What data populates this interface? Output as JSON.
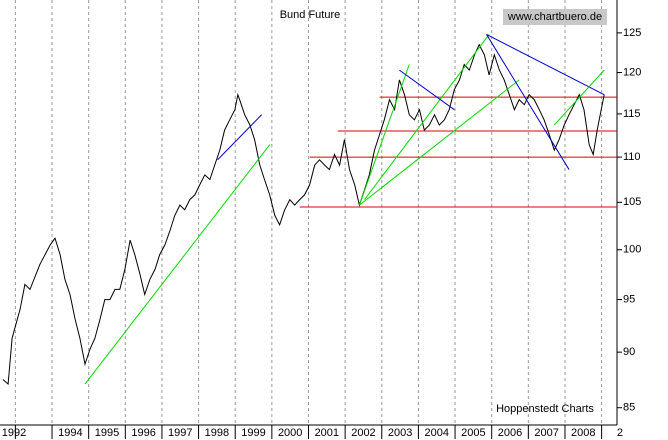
{
  "chart_data": {
    "type": "line",
    "title": "Bund Future",
    "watermark": "www.chartbuero.de",
    "source": "Hoppenstedt Charts",
    "ylog": true,
    "grid": "x",
    "xlim": [
      1992.58,
      2009.42
    ],
    "ylim": [
      83.5,
      129.3
    ],
    "yticks": [
      85,
      90,
      95,
      100,
      105,
      110,
      115,
      120,
      125
    ],
    "xticks": [
      {
        "value": 1992,
        "label": "1992"
      },
      {
        "value": 1993,
        "label": null
      },
      1994,
      1995,
      1996,
      1997,
      1998,
      1999,
      2000,
      2001,
      2002,
      2003,
      2004,
      2005,
      2006,
      2007,
      2008,
      {
        "value": 2009,
        "label": "2"
      }
    ],
    "x": [
      1992.66,
      1992.8,
      1992.91,
      1993.13,
      1993.26,
      1993.4,
      1993.67,
      1993.95,
      1994.08,
      1994.22,
      1994.35,
      1994.49,
      1994.63,
      1994.76,
      1994.9,
      1995.04,
      1995.17,
      1995.31,
      1995.44,
      1995.58,
      1995.72,
      1995.85,
      1995.99,
      1996.13,
      1996.26,
      1996.4,
      1996.53,
      1996.67,
      1996.81,
      1996.94,
      1997.08,
      1997.22,
      1997.35,
      1997.49,
      1997.62,
      1997.76,
      1997.9,
      1998.03,
      1998.17,
      1998.31,
      1998.44,
      1998.58,
      1998.71,
      1998.85,
      1998.99,
      1999.07,
      1999.12,
      1999.26,
      1999.4,
      1999.53,
      1999.67,
      1999.8,
      1999.94,
      2000.08,
      2000.21,
      2000.35,
      2000.49,
      2000.62,
      2000.76,
      2000.89,
      2001.03,
      2001.17,
      2001.3,
      2001.44,
      2001.57,
      2001.71,
      2001.85,
      2001.98,
      2002.12,
      2002.26,
      2002.39,
      2002.53,
      2002.66,
      2002.8,
      2002.94,
      2003.07,
      2003.21,
      2003.35,
      2003.48,
      2003.62,
      2003.75,
      2003.89,
      2004.03,
      2004.16,
      2004.3,
      2004.44,
      2004.57,
      2004.71,
      2004.84,
      2004.98,
      2005.12,
      2005.25,
      2005.39,
      2005.53,
      2005.66,
      2005.8,
      2005.93,
      2006.07,
      2006.21,
      2006.34,
      2006.48,
      2006.62,
      2006.75,
      2006.89,
      2007.02,
      2007.16,
      2007.3,
      2007.43,
      2007.57,
      2007.71,
      2007.84,
      2007.98,
      2008.11,
      2008.25,
      2008.39,
      2008.52,
      2008.66,
      2008.77,
      2008.88,
      2008.99,
      2009.07
    ],
    "series": [
      {
        "color": "#000000",
        "values": [
          87.5,
          87.1,
          91.3,
          94.1,
          96.5,
          96.0,
          98.5,
          100.5,
          101.2,
          99.5,
          97.0,
          95.5,
          93.1,
          91.3,
          88.9,
          90.3,
          91.3,
          93.1,
          95.0,
          95.0,
          96.0,
          96.0,
          98.0,
          101.0,
          99.5,
          97.5,
          95.5,
          97.0,
          98.0,
          99.5,
          100.5,
          102.0,
          103.6,
          104.7,
          104.2,
          105.3,
          105.8,
          106.9,
          108.0,
          107.5,
          109.1,
          110.8,
          113.1,
          114.3,
          115.5,
          117.3,
          116.7,
          114.9,
          113.7,
          112.0,
          109.1,
          107.5,
          105.8,
          103.6,
          102.6,
          104.2,
          105.3,
          104.7,
          105.3,
          105.8,
          106.9,
          109.1,
          109.7,
          109.1,
          108.6,
          110.3,
          109.1,
          112.0,
          108.6,
          106.9,
          104.7,
          106.4,
          108.0,
          110.8,
          112.6,
          114.3,
          116.7,
          115.5,
          119.1,
          117.3,
          114.9,
          114.3,
          115.5,
          113.1,
          113.7,
          114.9,
          113.7,
          114.3,
          115.5,
          117.9,
          119.1,
          121.0,
          120.3,
          122.2,
          123.5,
          122.2,
          119.7,
          122.2,
          120.3,
          119.1,
          117.3,
          115.5,
          116.7,
          116.1,
          117.3,
          116.7,
          115.5,
          114.3,
          112.6,
          110.8,
          112.0,
          113.7,
          114.9,
          116.1,
          117.3,
          115.5,
          111.4,
          110.3,
          113.1,
          115.5,
          117.3
        ]
      }
    ],
    "trend_lines": [
      {
        "color": "#00dd00",
        "x": [
          1994.9,
          1999.94
        ],
        "y": [
          87.1,
          111.4
        ]
      },
      {
        "color": "#0000cc",
        "x": [
          1998.52,
          1999.72
        ],
        "y": [
          109.7,
          114.9
        ]
      },
      {
        "color": "#00dd00",
        "x": [
          2002.39,
          2006.75
        ],
        "y": [
          104.7,
          119.1
        ]
      },
      {
        "color": "#00dd00",
        "x": [
          2002.39,
          2003.75
        ],
        "y": [
          104.7,
          121.0
        ]
      },
      {
        "color": "#00dd00",
        "x": [
          2002.53,
          2005.93
        ],
        "y": [
          105.3,
          124.8
        ]
      },
      {
        "color": "#0000cc",
        "x": [
          2003.48,
          2004.98
        ],
        "y": [
          120.3,
          115.5
        ]
      },
      {
        "color": "#0000cc",
        "x": [
          2005.86,
          2009.07
        ],
        "y": [
          124.8,
          117.3
        ]
      },
      {
        "color": "#0000cc",
        "x": [
          2005.86,
          2008.11
        ],
        "y": [
          124.8,
          108.6
        ]
      },
      {
        "color": "#00dd00",
        "x": [
          2007.71,
          2009.07
        ],
        "y": [
          113.7,
          120.3
        ]
      }
    ],
    "hlines": [
      {
        "color": "#dd0000",
        "value": 104.5,
        "x_start": 2000.76
      },
      {
        "color": "#dd0000",
        "value": 110,
        "x_start": 2001.03
      },
      {
        "color": "#dd0000",
        "value": 113,
        "x_start": 2001.8
      },
      {
        "color": "#dd0000",
        "value": 117,
        "x_start": 2002.94
      }
    ]
  }
}
